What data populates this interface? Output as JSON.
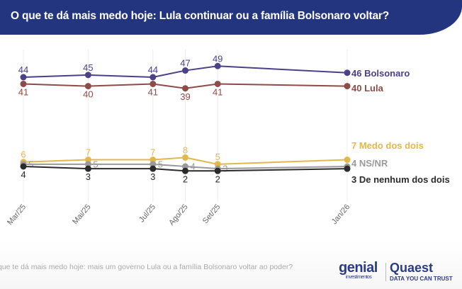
{
  "header": {
    "title": "O que te dá mais medo hoje: Lula continuar ou a família Bolsonaro voltar?"
  },
  "footer": {
    "note": "que te dá mais medo hoje: mais um governo Lula ou a família Bolsonaro voltar ao poder?",
    "logo_genial": "genial",
    "logo_genial_sub": "investimentos",
    "logo_quaest": "Quaest",
    "logo_quaest_sub": "DATA YOU CAN TRUST"
  },
  "chart_data": {
    "type": "line",
    "title": "O que te dá mais medo hoje: Lula continuar ou a família Bolsonaro voltar?",
    "categories": [
      "Mar/25",
      "Mai/25",
      "Jul/25",
      "Ago/25",
      "Set/25",
      "Jan/26"
    ],
    "x_months": [
      "2025-03",
      "2025-05",
      "2025-07",
      "2025-08",
      "2025-09",
      "2026-01"
    ],
    "grid": "vertical",
    "legend": "end-of-line labels",
    "series": [
      {
        "name": "Bolsonaro",
        "end_label": "46 Bolsonaro",
        "color": "#4a4188",
        "values": [
          44,
          45,
          44,
          47,
          49,
          46
        ],
        "label_pos": "above"
      },
      {
        "name": "Lula",
        "end_label": "40 Lula",
        "color": "#8f4b47",
        "values": [
          41,
          40,
          41,
          39,
          41,
          40
        ],
        "label_pos": "above"
      },
      {
        "name": "Medo dos dois",
        "end_label": "7 Medo dos dois",
        "color": "#e2b84a",
        "values": [
          6,
          7,
          7,
          8,
          5,
          7
        ],
        "label_pos": "above"
      },
      {
        "name": "NS/NR",
        "end_label": "4 NS/NR",
        "color": "#9a9a9a",
        "values": [
          5,
          5,
          5,
          4,
          3,
          4
        ],
        "label_pos": "above"
      },
      {
        "name": "De nenhum dos dois",
        "end_label": "3 De nenhum dos dois",
        "color": "#2b2b2b",
        "values": [
          4,
          3,
          3,
          2,
          2,
          3
        ],
        "label_pos": "below"
      }
    ]
  }
}
